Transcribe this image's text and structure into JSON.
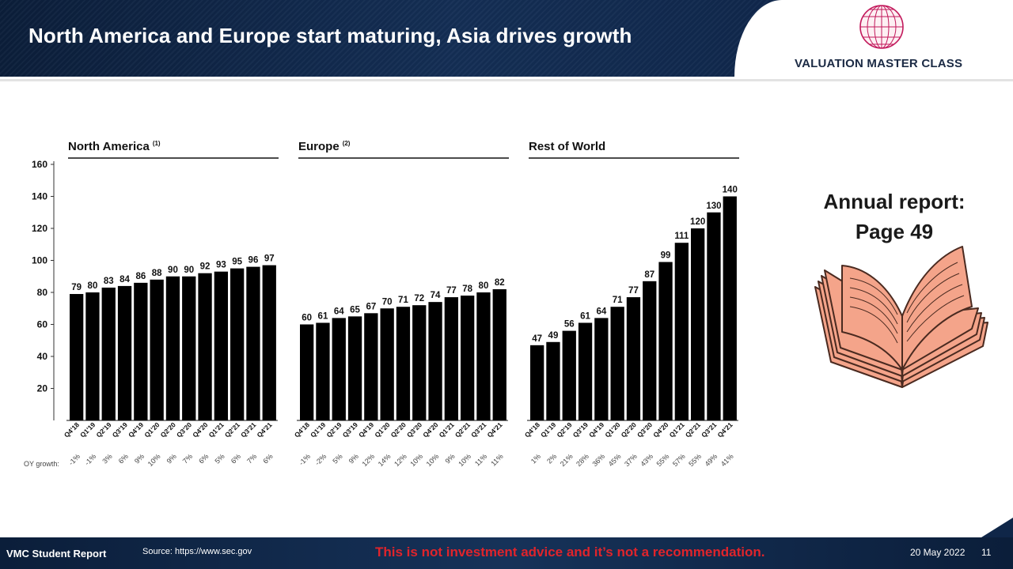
{
  "header": {
    "title": "North America and Europe start maturing, Asia drives growth",
    "logo_text": "VALUATION MASTER CLASS"
  },
  "side_note": {
    "line1": "Annual report:",
    "line2": "Page 49"
  },
  "footer": {
    "left_label": "VMC Student Report",
    "source": "Source: https://www.sec.gov",
    "disclaimer": "This is not investment advice and it’s not a recommendation.",
    "date": "20 May 2022",
    "page": "11"
  },
  "colors": {
    "bar": "#000000",
    "header_bg": "#0d2244",
    "disclaimer": "#e0242b",
    "book": "#f4a48a"
  },
  "chart_data": {
    "type": "bar",
    "ylim": [
      0,
      160
    ],
    "yticks": [
      20,
      40,
      60,
      80,
      100,
      120,
      140,
      160
    ],
    "growth_row_label": "OY growth:",
    "categories": [
      "Q4'18",
      "Q1'19",
      "Q2'19",
      "Q3'19",
      "Q4'19",
      "Q1'20",
      "Q2'20",
      "Q3'20",
      "Q4'20",
      "Q1'21",
      "Q2'21",
      "Q3'21",
      "Q4'21"
    ],
    "panels": [
      {
        "title": "North America",
        "sup": "(1)",
        "values": [
          79,
          80,
          83,
          84,
          86,
          88,
          90,
          90,
          92,
          93,
          95,
          96,
          97
        ],
        "growth": [
          "-1%",
          "-1%",
          "3%",
          "6%",
          "9%",
          "10%",
          "9%",
          "7%",
          "6%",
          "5%",
          "6%",
          "7%",
          "6%"
        ]
      },
      {
        "title": "Europe",
        "sup": "(2)",
        "values": [
          60,
          61,
          64,
          65,
          67,
          70,
          71,
          72,
          74,
          77,
          78,
          80,
          82
        ],
        "growth": [
          "-1%",
          "-2%",
          "5%",
          "9%",
          "12%",
          "14%",
          "12%",
          "10%",
          "10%",
          "9%",
          "10%",
          "11%",
          "11%"
        ]
      },
      {
        "title": "Rest of World",
        "sup": "",
        "values": [
          47,
          49,
          56,
          61,
          64,
          71,
          77,
          87,
          99,
          111,
          120,
          130,
          140
        ],
        "growth": [
          "1%",
          "2%",
          "21%",
          "28%",
          "36%",
          "45%",
          "37%",
          "43%",
          "55%",
          "57%",
          "55%",
          "49%",
          "41%"
        ]
      }
    ]
  }
}
